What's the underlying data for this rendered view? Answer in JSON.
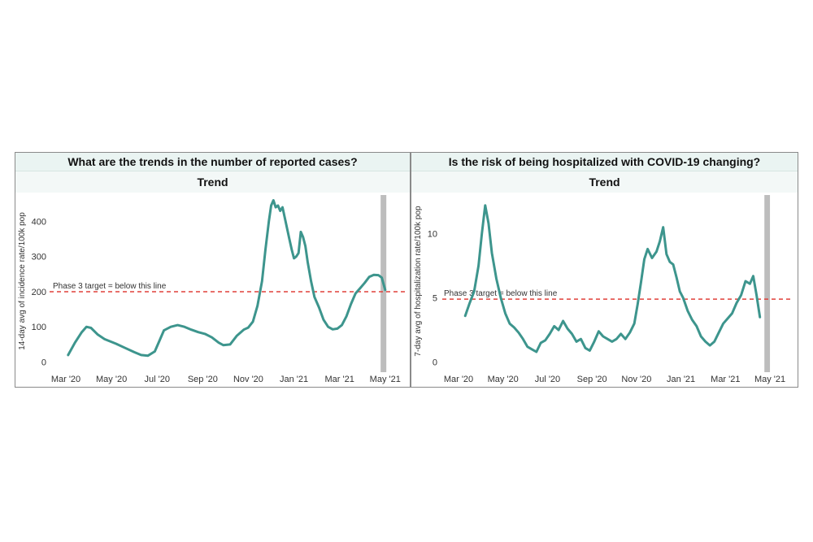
{
  "chart_data": [
    {
      "type": "line",
      "title": "What are the trends in the number of reported cases?",
      "subtitle": "Trend",
      "ylabel": "14-day avg of incidence rate/100k pop",
      "ylim": [
        -15,
        475
      ],
      "yticks": [
        0,
        100,
        200,
        300,
        400
      ],
      "xlim": [
        0,
        14.4
      ],
      "xticks": [
        0,
        2,
        4,
        6,
        8,
        10,
        12,
        14
      ],
      "xtick_labels": [
        "Mar '20",
        "May '20",
        "Jul '20",
        "Sep '20",
        "Nov '20",
        "Jan '21",
        "Mar '21",
        "May '21"
      ],
      "threshold": {
        "value": 200,
        "label": "Phase 3 target =  below this line",
        "color": "#e0403a"
      },
      "shaded_range": [
        13.8,
        14.05
      ],
      "line_color": "#3d958d",
      "series": [
        {
          "name": "Incidence",
          "points": [
            [
              0.1,
              20
            ],
            [
              0.4,
              55
            ],
            [
              0.7,
              85
            ],
            [
              0.9,
              100
            ],
            [
              1.1,
              97
            ],
            [
              1.4,
              78
            ],
            [
              1.7,
              65
            ],
            [
              2.2,
              52
            ],
            [
              2.6,
              40
            ],
            [
              3.0,
              28
            ],
            [
              3.3,
              20
            ],
            [
              3.6,
              18
            ],
            [
              3.9,
              30
            ],
            [
              4.1,
              60
            ],
            [
              4.3,
              90
            ],
            [
              4.6,
              100
            ],
            [
              4.9,
              105
            ],
            [
              5.2,
              100
            ],
            [
              5.5,
              92
            ],
            [
              5.8,
              85
            ],
            [
              6.1,
              80
            ],
            [
              6.4,
              70
            ],
            [
              6.7,
              55
            ],
            [
              6.9,
              48
            ],
            [
              7.2,
              50
            ],
            [
              7.5,
              75
            ],
            [
              7.8,
              92
            ],
            [
              8.0,
              98
            ],
            [
              8.2,
              115
            ],
            [
              8.4,
              160
            ],
            [
              8.6,
              230
            ],
            [
              8.75,
              320
            ],
            [
              8.9,
              400
            ],
            [
              9.0,
              445
            ],
            [
              9.1,
              460
            ],
            [
              9.2,
              440
            ],
            [
              9.3,
              445
            ],
            [
              9.4,
              430
            ],
            [
              9.5,
              440
            ],
            [
              9.6,
              410
            ],
            [
              9.7,
              380
            ],
            [
              9.8,
              350
            ],
            [
              9.9,
              320
            ],
            [
              10.0,
              295
            ],
            [
              10.1,
              300
            ],
            [
              10.2,
              310
            ],
            [
              10.3,
              370
            ],
            [
              10.4,
              355
            ],
            [
              10.5,
              330
            ],
            [
              10.6,
              285
            ],
            [
              10.75,
              230
            ],
            [
              10.9,
              185
            ],
            [
              11.1,
              155
            ],
            [
              11.3,
              120
            ],
            [
              11.5,
              100
            ],
            [
              11.7,
              93
            ],
            [
              11.9,
              95
            ],
            [
              12.1,
              105
            ],
            [
              12.3,
              130
            ],
            [
              12.5,
              165
            ],
            [
              12.7,
              195
            ],
            [
              12.9,
              210
            ],
            [
              13.1,
              225
            ],
            [
              13.3,
              242
            ],
            [
              13.5,
              248
            ],
            [
              13.7,
              247
            ],
            [
              13.85,
              240
            ],
            [
              14.0,
              205
            ]
          ]
        }
      ]
    },
    {
      "type": "line",
      "title": "Is the risk of being hospitalized with COVID-19 changing?",
      "subtitle": "Trend",
      "ylabel": "7-day avg of hospitalization rate/100k pop",
      "ylim": [
        -0.4,
        13.0
      ],
      "yticks": [
        0,
        5,
        10
      ],
      "xlim": [
        0,
        14.4
      ],
      "xticks": [
        0,
        2,
        4,
        6,
        8,
        10,
        12,
        14
      ],
      "xtick_labels": [
        "Mar '20",
        "May '20",
        "Jul '20",
        "Sep '20",
        "Nov '20",
        "Jan '21",
        "Mar '21",
        "May '21"
      ],
      "threshold": {
        "value": 4.9,
        "label": "Phase 3 target = below this line",
        "color": "#e0403a"
      },
      "shaded_range": [
        13.75,
        14.0
      ],
      "line_color": "#3d958d",
      "series": [
        {
          "name": "Hospitalization",
          "points": [
            [
              0.3,
              3.6
            ],
            [
              0.5,
              4.6
            ],
            [
              0.7,
              5.5
            ],
            [
              0.9,
              7.5
            ],
            [
              1.05,
              10.0
            ],
            [
              1.2,
              12.2
            ],
            [
              1.35,
              10.8
            ],
            [
              1.5,
              8.5
            ],
            [
              1.7,
              6.5
            ],
            [
              1.9,
              5.0
            ],
            [
              2.1,
              3.8
            ],
            [
              2.3,
              3.0
            ],
            [
              2.5,
              2.7
            ],
            [
              2.7,
              2.3
            ],
            [
              2.9,
              1.8
            ],
            [
              3.1,
              1.2
            ],
            [
              3.3,
              1.0
            ],
            [
              3.5,
              0.8
            ],
            [
              3.7,
              1.5
            ],
            [
              3.9,
              1.7
            ],
            [
              4.1,
              2.2
            ],
            [
              4.3,
              2.8
            ],
            [
              4.5,
              2.5
            ],
            [
              4.7,
              3.2
            ],
            [
              4.9,
              2.6
            ],
            [
              5.1,
              2.2
            ],
            [
              5.3,
              1.6
            ],
            [
              5.5,
              1.8
            ],
            [
              5.7,
              1.1
            ],
            [
              5.9,
              0.9
            ],
            [
              6.1,
              1.6
            ],
            [
              6.3,
              2.4
            ],
            [
              6.5,
              2.0
            ],
            [
              6.7,
              1.8
            ],
            [
              6.9,
              1.6
            ],
            [
              7.1,
              1.8
            ],
            [
              7.3,
              2.2
            ],
            [
              7.5,
              1.8
            ],
            [
              7.7,
              2.3
            ],
            [
              7.9,
              3.0
            ],
            [
              8.05,
              4.5
            ],
            [
              8.2,
              6.2
            ],
            [
              8.35,
              8.0
            ],
            [
              8.5,
              8.8
            ],
            [
              8.7,
              8.1
            ],
            [
              8.9,
              8.6
            ],
            [
              9.05,
              9.4
            ],
            [
              9.2,
              10.5
            ],
            [
              9.35,
              8.4
            ],
            [
              9.5,
              7.8
            ],
            [
              9.65,
              7.6
            ],
            [
              9.8,
              6.6
            ],
            [
              9.95,
              5.5
            ],
            [
              10.1,
              5.0
            ],
            [
              10.3,
              4.0
            ],
            [
              10.5,
              3.3
            ],
            [
              10.7,
              2.8
            ],
            [
              10.9,
              2.0
            ],
            [
              11.1,
              1.6
            ],
            [
              11.3,
              1.3
            ],
            [
              11.5,
              1.6
            ],
            [
              11.7,
              2.3
            ],
            [
              11.9,
              3.0
            ],
            [
              12.1,
              3.4
            ],
            [
              12.3,
              3.8
            ],
            [
              12.5,
              4.6
            ],
            [
              12.7,
              5.2
            ],
            [
              12.9,
              6.3
            ],
            [
              13.1,
              6.1
            ],
            [
              13.25,
              6.7
            ],
            [
              13.4,
              5.2
            ],
            [
              13.55,
              3.5
            ]
          ]
        }
      ]
    }
  ]
}
